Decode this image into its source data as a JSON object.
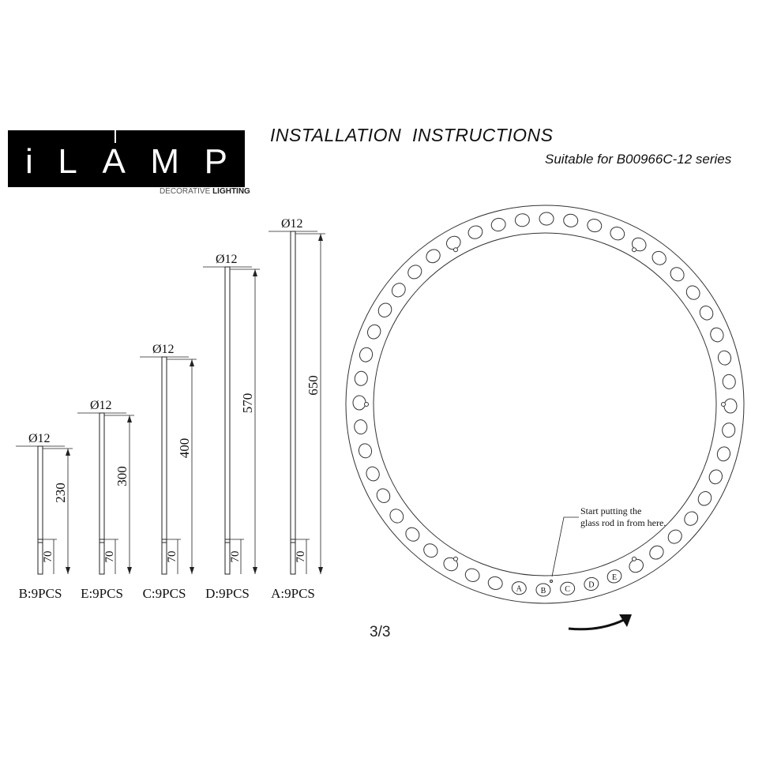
{
  "header": {
    "brand": "iLAMP",
    "tagline_light": "DECORATIVE",
    "tagline_bold": "LIGHTING",
    "title": "INSTALLATION  INSTRUCTIONS",
    "subtitle": "Suitable for B00966C-12 series"
  },
  "rods": [
    {
      "id": "B",
      "diameter_label": "Ø12",
      "length": "230",
      "lower": "70",
      "label": "B:9PCS"
    },
    {
      "id": "E",
      "diameter_label": "Ø12",
      "length": "300",
      "lower": "70",
      "label": "E:9PCS"
    },
    {
      "id": "C",
      "diameter_label": "Ø12",
      "length": "400",
      "lower": "70",
      "label": "C:9PCS"
    },
    {
      "id": "D",
      "diameter_label": "Ø12",
      "length": "570",
      "lower": "70",
      "label": "D:9PCS"
    },
    {
      "id": "A",
      "diameter_label": "Ø12",
      "length": "650",
      "lower": "70",
      "label": "A:9PCS"
    }
  ],
  "ring": {
    "note_line1": "Start putting the",
    "note_line2": "glass rod in from here.",
    "hole_letters": [
      "A",
      "B",
      "C",
      "D",
      "E"
    ],
    "direction_icon": "curved-arrow-clockwise"
  },
  "page": "3/3"
}
